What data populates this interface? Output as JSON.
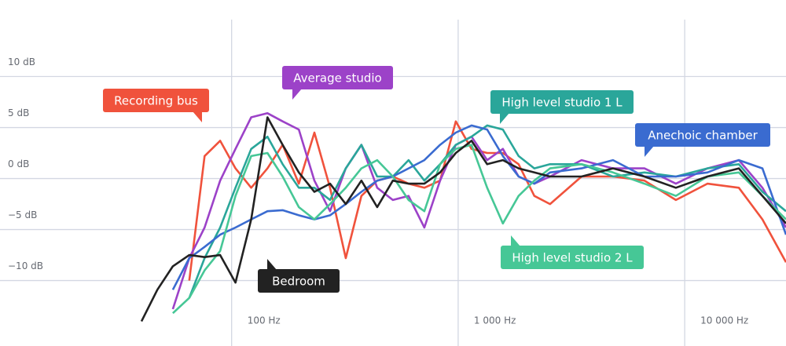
{
  "chart_data": {
    "type": "line",
    "x": [
      40,
      47,
      55,
      65,
      76,
      89,
      104,
      122,
      144,
      168,
      198,
      232,
      272,
      319,
      374,
      439,
      515,
      604,
      709,
      832,
      976,
      1145,
      1343,
      1576,
      1849,
      2169,
      2545,
      3504,
      4825,
      6643,
      9146,
      12593,
      17338,
      22040,
      28000
    ],
    "xlim": [
      40,
      28000
    ],
    "xticks": [
      {
        "value": 100,
        "label": "100 Hz"
      },
      {
        "value": 1000,
        "label": "1 000 Hz"
      },
      {
        "value": 10000,
        "label": "10 000 Hz"
      }
    ],
    "xscale": "log",
    "ylim": [
      -14.8,
      17.5
    ],
    "yticks": [
      {
        "value": 10,
        "label": "10 dB"
      },
      {
        "value": 5,
        "label": "5 dB"
      },
      {
        "value": 0,
        "label": "0 dB"
      },
      {
        "value": -5,
        "label": "−5 dB"
      },
      {
        "value": -10,
        "label": "−10 dB"
      }
    ],
    "grid": true,
    "series": [
      {
        "name": "Recording bus",
        "color": "#f0523c",
        "values": [
          null,
          null,
          null,
          -10,
          2.2,
          3.7,
          1,
          -0.9,
          1,
          3.3,
          -0.5,
          4.5,
          -0.9,
          -7.8,
          -1.7,
          -0.2,
          0.2,
          -0.5,
          -0.9,
          -0.2,
          5.6,
          2.9,
          2.5,
          2.5,
          1.4,
          -1.7,
          -2.5,
          0.2,
          0.2,
          -0.2,
          -2.1,
          -0.5,
          -0.9,
          -4,
          -8.2
        ]
      },
      {
        "name": "Average studio",
        "color": "#9c42c8",
        "values": [
          null,
          null,
          -12.8,
          -7.8,
          -4.8,
          -0.2,
          2.9,
          6,
          6.4,
          5.6,
          4.8,
          -0.2,
          -3.2,
          1,
          3.3,
          -0.9,
          -2.1,
          -1.7,
          -4.8,
          -0.2,
          3.3,
          4.1,
          1.8,
          2.9,
          0.2,
          -0.5,
          0.2,
          1.8,
          1,
          1,
          -0.5,
          1,
          1.8,
          -0.9,
          -4.8
        ]
      },
      {
        "name": "High level studio 1 L",
        "color": "#2aa69a",
        "values": [
          null,
          null,
          null,
          -11.7,
          -7.8,
          -4.8,
          -0.9,
          2.9,
          4.1,
          1.4,
          -0.9,
          -0.9,
          -2.1,
          1,
          3.3,
          0.2,
          0.2,
          1.8,
          -0.2,
          1.4,
          3.3,
          4.1,
          5.2,
          4.8,
          2.2,
          1,
          1.4,
          1.4,
          0.2,
          0.6,
          0.2,
          1,
          1.4,
          -1.3,
          -3.2
        ]
      },
      {
        "name": "Anechoic chamber",
        "color": "#3a6bd0",
        "values": [
          null,
          null,
          -10.9,
          -7.8,
          -6.7,
          -5.5,
          -4.8,
          -4,
          -3.2,
          -3.1,
          -3.6,
          -4,
          -3.6,
          -2.5,
          -1.3,
          -0.2,
          0.2,
          1,
          1.8,
          3.3,
          4.5,
          5.2,
          4.8,
          2.2,
          0.2,
          -0.5,
          0.6,
          1,
          1.8,
          0.2,
          0.2,
          0.6,
          1.8,
          1,
          -5.5
        ]
      },
      {
        "name": "High level studio 2 L",
        "color": "#46c796",
        "values": [
          null,
          null,
          -13.2,
          -11.7,
          -9,
          -7.1,
          -1.7,
          2.2,
          2.5,
          0.2,
          -2.8,
          -4,
          -2.5,
          -0.9,
          1,
          1.8,
          0.2,
          -2.1,
          -3.2,
          1.4,
          2.9,
          3.3,
          -0.9,
          -4.4,
          -1.7,
          -0.2,
          1,
          1.4,
          0.6,
          -0.5,
          -1.7,
          0.2,
          0.6,
          -1.7,
          -4
        ]
      },
      {
        "name": "Bedroom",
        "color": "#222222",
        "values": [
          -14,
          -10.9,
          -8.6,
          -7.5,
          -7.7,
          -7.5,
          -10.2,
          -4,
          6,
          3.3,
          0.6,
          -1.3,
          -0.5,
          -2.5,
          -0.2,
          -2.8,
          -0.2,
          -0.5,
          -0.5,
          0.6,
          2.5,
          3.7,
          1.4,
          1.8,
          1,
          0.6,
          0.2,
          0.2,
          1,
          0.2,
          -0.9,
          0.2,
          1,
          -1.7,
          -4.4
        ]
      }
    ]
  }
}
